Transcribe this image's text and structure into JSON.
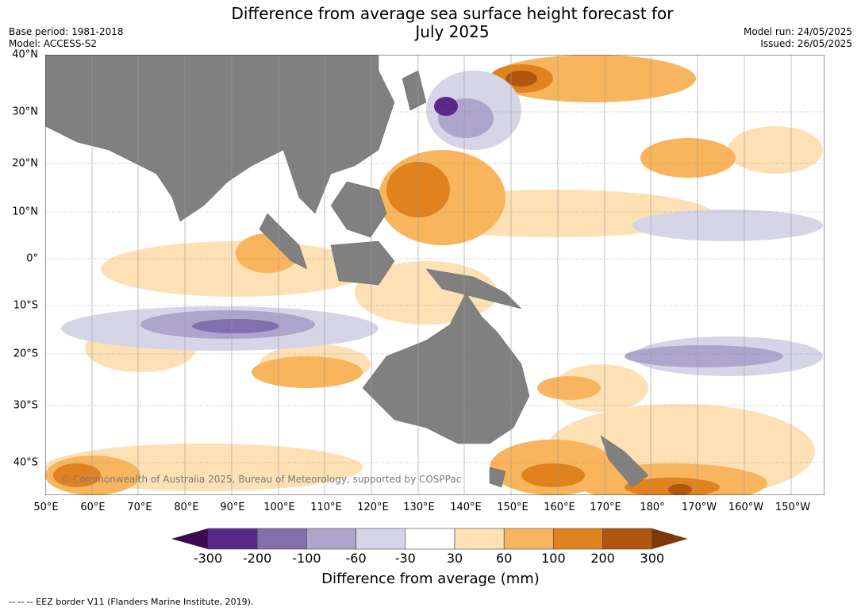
{
  "header": {
    "title_line1": "Difference from average sea surface height forecast for",
    "title_line2": "July 2025",
    "base_period": "Base period: 1981-2018",
    "model": "Model: ACCESS-S2",
    "model_run": "Model run: 24/05/2025",
    "issued": "Issued: 26/05/2025"
  },
  "map": {
    "credit": "© Commonwealth of Australia 2025, Bureau of Meteorology, supported by COSPPac",
    "land_color": "#808080",
    "x_ticks": [
      "50°E",
      "60°E",
      "70°E",
      "80°E",
      "90°E",
      "100°E",
      "110°E",
      "120°E",
      "130°E",
      "140°E",
      "150°E",
      "160°E",
      "170°E",
      "180°",
      "170°W",
      "160°W",
      "150°W"
    ],
    "y_ticks": [
      "40°N",
      "30°N",
      "20°N",
      "10°N",
      "0°",
      "10°S",
      "20°S",
      "30°S",
      "40°S"
    ]
  },
  "colorbar": {
    "label": "Difference from average (mm)",
    "ticks": [
      "-300",
      "-200",
      "-100",
      "-60",
      "-30",
      "30",
      "60",
      "100",
      "200",
      "300"
    ],
    "colors": [
      "#3b0a4f",
      "#5a2888",
      "#8070ad",
      "#aea5cc",
      "#d6d5e8",
      "#ffffff",
      "#fde0b4",
      "#f8b55d",
      "#e0821e",
      "#b0560f",
      "#7a3a0a"
    ]
  },
  "footnote": "--  --  -- EEZ border V11 (Flanders Marine Institute, 2019)."
}
